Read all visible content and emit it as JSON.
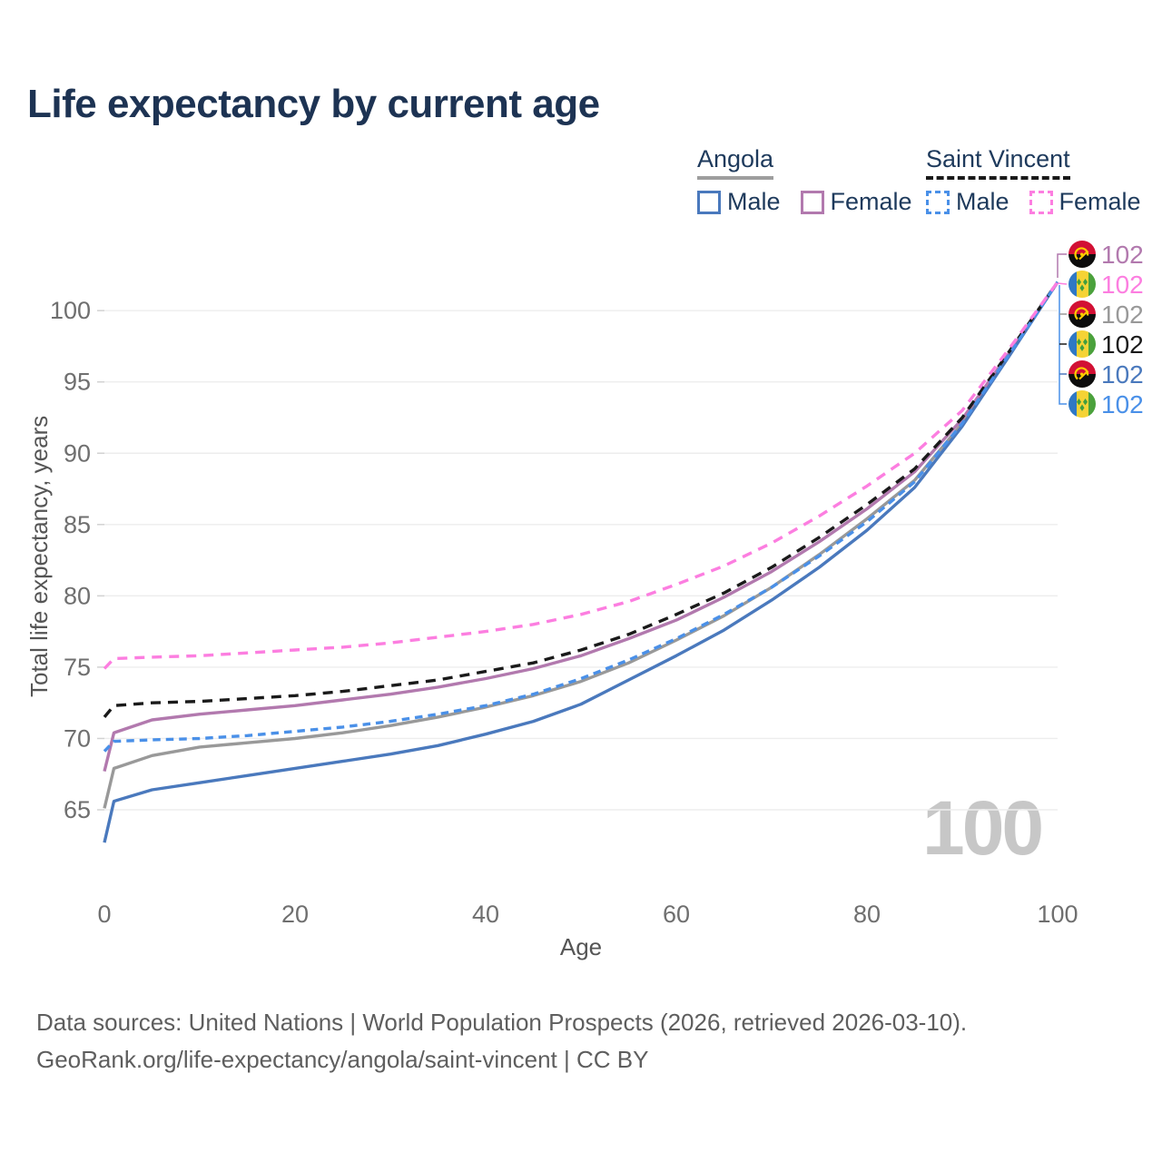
{
  "header": {
    "title": "Life expectancy by current age"
  },
  "legend": {
    "groups": [
      {
        "label": "Angola",
        "underline": "solid",
        "underline_color": "#9e9e9e",
        "items": [
          {
            "label": "Male",
            "swatch": "solid",
            "color": "#4a79bd"
          },
          {
            "label": "Female",
            "swatch": "solid",
            "color": "#b279ae"
          }
        ]
      },
      {
        "label": "Saint Vincent",
        "underline": "dashed",
        "underline_color": "#1a1a1a",
        "items": [
          {
            "label": "Male",
            "swatch": "dashed",
            "color": "#4a90e8"
          },
          {
            "label": "Female",
            "swatch": "dashed",
            "color": "#fc7ee0"
          }
        ]
      }
    ]
  },
  "chart_data": {
    "type": "line",
    "title": "Life expectancy by current age",
    "xlabel": "Age",
    "ylabel": "Total life expectancy, years",
    "xlim": [
      0,
      100
    ],
    "ylim": [
      62,
      103
    ],
    "xticks": [
      0,
      20,
      40,
      60,
      80,
      100
    ],
    "yticks": [
      65,
      70,
      75,
      80,
      85,
      90,
      95,
      100
    ],
    "grid": true,
    "legend_position": "top-right",
    "age_cursor_label": "100",
    "x": [
      0,
      1,
      5,
      10,
      15,
      20,
      25,
      30,
      35,
      40,
      45,
      50,
      55,
      60,
      65,
      70,
      75,
      80,
      85,
      90,
      95,
      100
    ],
    "series": [
      {
        "name": "Angola",
        "country": "Angola",
        "sex": "Both",
        "style": "solid",
        "dash": "",
        "color": "#999999",
        "values": [
          65.1,
          67.9,
          68.8,
          69.4,
          69.7,
          70.0,
          70.4,
          70.9,
          71.5,
          72.2,
          73.0,
          74.0,
          75.3,
          76.9,
          78.6,
          80.6,
          82.9,
          85.4,
          88.1,
          92.1,
          97.0,
          102
        ]
      },
      {
        "name": "Angola Female",
        "country": "Angola",
        "sex": "Female",
        "style": "solid",
        "dash": "",
        "color": "#b279ae",
        "values": [
          67.7,
          70.4,
          71.3,
          71.7,
          72.0,
          72.3,
          72.7,
          73.1,
          73.6,
          74.2,
          74.9,
          75.8,
          77.0,
          78.3,
          79.9,
          81.7,
          83.8,
          86.1,
          88.7,
          92.4,
          97.1,
          102
        ]
      },
      {
        "name": "Angola Male",
        "country": "Angola",
        "sex": "Male",
        "style": "solid",
        "dash": "",
        "color": "#4a79bd",
        "values": [
          62.7,
          65.6,
          66.4,
          66.9,
          67.4,
          67.9,
          68.4,
          68.9,
          69.5,
          70.3,
          71.2,
          72.4,
          74.1,
          75.8,
          77.6,
          79.7,
          82.0,
          84.6,
          87.6,
          91.9,
          96.9,
          102
        ]
      },
      {
        "name": "Saint Vincent",
        "country": "Saint Vincent",
        "sex": "Both",
        "style": "dashed",
        "dash": "11 8",
        "color": "#1a1a1a",
        "values": [
          71.5,
          72.3,
          72.5,
          72.6,
          72.8,
          73.0,
          73.3,
          73.7,
          74.1,
          74.7,
          75.3,
          76.2,
          77.3,
          78.7,
          80.2,
          82.0,
          84.1,
          86.4,
          88.9,
          92.5,
          97.2,
          102
        ]
      },
      {
        "name": "Saint Vincent Male",
        "country": "Saint Vincent",
        "sex": "Male",
        "style": "dashed",
        "dash": "8.5 6",
        "color": "#4a90e8",
        "values": [
          69.1,
          69.8,
          69.9,
          70.0,
          70.2,
          70.5,
          70.8,
          71.2,
          71.7,
          72.3,
          73.1,
          74.2,
          75.5,
          77.0,
          78.7,
          80.6,
          82.8,
          85.2,
          88.0,
          92.1,
          97.0,
          102
        ]
      },
      {
        "name": "Saint Vincent Female",
        "country": "Saint Vincent",
        "sex": "Female",
        "style": "dashed",
        "dash": "11 8",
        "color": "#fc7ee0",
        "values": [
          74.9,
          75.6,
          75.7,
          75.8,
          76.0,
          76.2,
          76.4,
          76.7,
          77.1,
          77.5,
          78.0,
          78.7,
          79.6,
          80.8,
          82.1,
          83.7,
          85.6,
          87.7,
          90.0,
          93.0,
          97.4,
          102
        ]
      }
    ],
    "end_labels": [
      {
        "flag": "angola",
        "series": "Angola Female",
        "value": "102",
        "color": "#b279ae"
      },
      {
        "flag": "saint-vincent",
        "series": "Saint Vincent Female",
        "value": "102",
        "color": "#fc7ee0"
      },
      {
        "flag": "angola",
        "series": "Angola",
        "value": "102",
        "color": "#999999"
      },
      {
        "flag": "saint-vincent",
        "series": "Saint Vincent",
        "value": "102",
        "color": "#1a1a1a"
      },
      {
        "flag": "angola",
        "series": "Angola Male",
        "value": "102",
        "color": "#4a79bd"
      },
      {
        "flag": "saint-vincent",
        "series": "Saint Vincent Male",
        "value": "102",
        "color": "#4a90e8"
      }
    ]
  },
  "footer": {
    "line1": "Data sources: United Nations | World Population Prospects (2026, retrieved 2026-03-10).",
    "line2": "GeoRank.org/life-expectancy/angola/saint-vincent | CC BY"
  }
}
